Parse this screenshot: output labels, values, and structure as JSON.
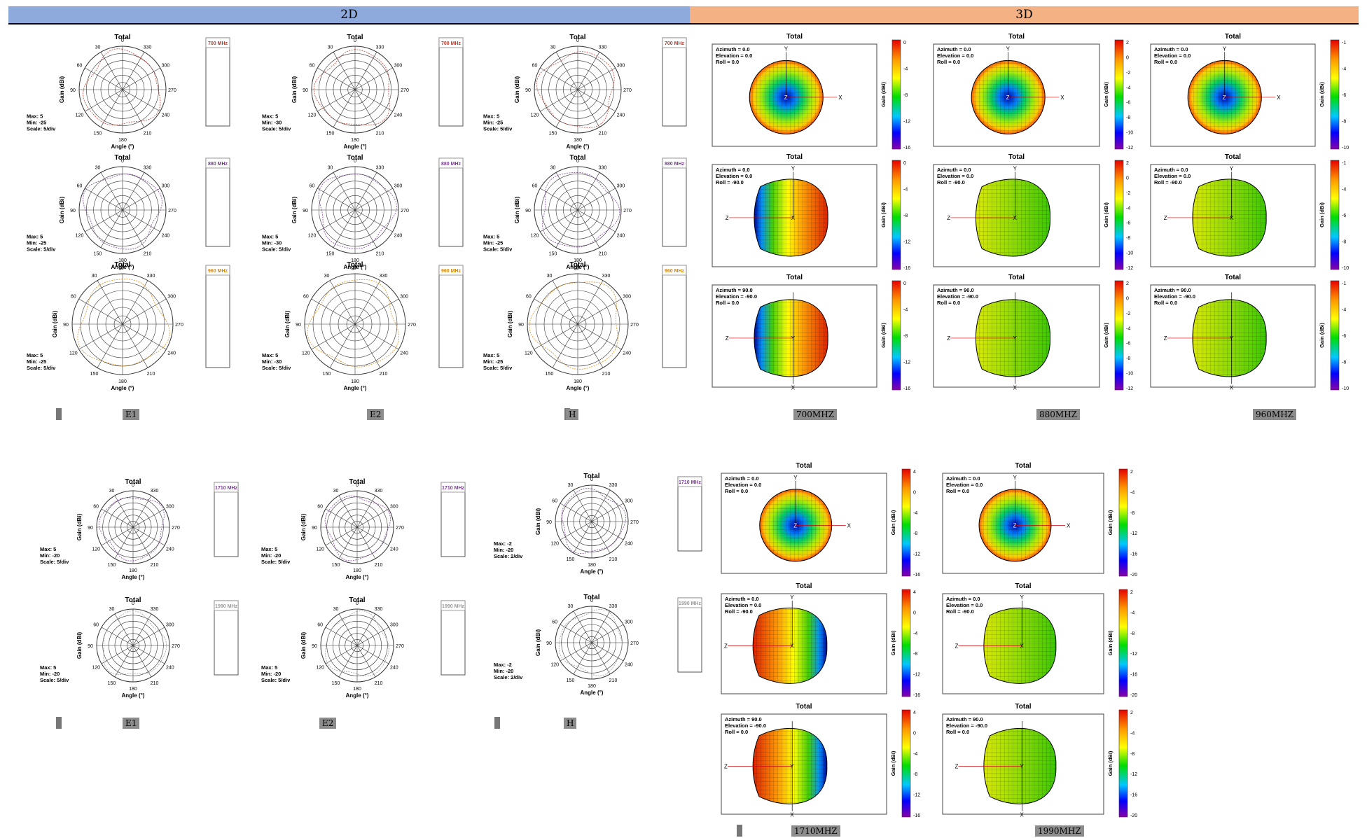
{
  "sections": {
    "twod": "2D",
    "threed": "3D"
  },
  "colors": {
    "header_2d": "#8ea9db",
    "header_3d": "#f4b183"
  },
  "polar_common": {
    "title": "Total",
    "angle_label": "Angle (°)",
    "gain_label": "Gain (dBi)",
    "angle_ticks": [
      "0",
      "30",
      "60",
      "90",
      "120",
      "150",
      "180",
      "210",
      "240",
      "270",
      "300",
      "330"
    ]
  },
  "band_labels": {
    "700": {
      "label": "700 MHz",
      "color": "#c0392b"
    },
    "880": {
      "label": "880 MHz",
      "color": "#7d3c98"
    },
    "960": {
      "label": "960 MHz",
      "color": "#d68910"
    },
    "1710": {
      "label": "1710 MHz",
      "color": "#7d3c98"
    },
    "1990": {
      "label": "1990 MHz",
      "color": "#999999"
    }
  },
  "polar_plots": [
    {
      "row": 0,
      "col": 0,
      "band": "700",
      "stats": [
        "Max: 5",
        "Min: -25",
        "Scale: 5/div"
      ]
    },
    {
      "row": 0,
      "col": 1,
      "band": "700",
      "stats": [
        "Max: 5",
        "Min: -30",
        "Scale: 5/div"
      ]
    },
    {
      "row": 0,
      "col": 2,
      "band": "700",
      "stats": [
        "Max: 5",
        "Min: -25",
        "Scale: 5/div"
      ]
    },
    {
      "row": 1,
      "col": 0,
      "band": "880",
      "stats": [
        "Max: 5",
        "Min: -25",
        "Scale: 5/div"
      ]
    },
    {
      "row": 1,
      "col": 1,
      "band": "880",
      "stats": [
        "Max: 5",
        "Min: -30",
        "Scale: 5/div"
      ]
    },
    {
      "row": 1,
      "col": 2,
      "band": "880",
      "stats": [
        "Max: 5",
        "Min: -25",
        "Scale: 5/div"
      ]
    },
    {
      "row": 2,
      "col": 0,
      "band": "960",
      "stats": [
        "Max: 5",
        "Min: -25",
        "Scale: 5/div"
      ]
    },
    {
      "row": 2,
      "col": 1,
      "band": "960",
      "stats": [
        "Max: 5",
        "Min: -30",
        "Scale: 5/div"
      ]
    },
    {
      "row": 2,
      "col": 2,
      "band": "960",
      "stats": [
        "Max: 5",
        "Min: -25",
        "Scale: 5/div"
      ]
    },
    {
      "row": 3,
      "col": 0,
      "band": "1710",
      "stats": [
        "Max: 5",
        "Min: -20",
        "Scale: 5/div"
      ]
    },
    {
      "row": 3,
      "col": 1,
      "band": "1710",
      "stats": [
        "Max: 5",
        "Min: -20",
        "Scale: 5/div"
      ]
    },
    {
      "row": 3,
      "col": 2,
      "band": "1710",
      "stats": [
        "Max: -2",
        "Min: -20",
        "Scale: 2/div"
      ]
    },
    {
      "row": 4,
      "col": 0,
      "band": "1990",
      "stats": [
        "Max: 5",
        "Min: -20",
        "Scale: 5/div"
      ]
    },
    {
      "row": 4,
      "col": 1,
      "band": "1990",
      "stats": [
        "Max: 5",
        "Min: -20",
        "Scale: 5/div"
      ]
    },
    {
      "row": 4,
      "col": 2,
      "band": "1990",
      "stats": [
        "Max: -2",
        "Min: -20",
        "Scale: 2/div"
      ]
    }
  ],
  "plots_3d": [
    {
      "col": 0,
      "row": 0,
      "view": "front",
      "info": [
        "Azimuth = 0.0",
        "Elevation = 0.0",
        "Roll = 0.0"
      ],
      "scale": [
        "0",
        "-4",
        "-8",
        "-12",
        "-16"
      ]
    },
    {
      "col": 0,
      "row": 1,
      "view": "side",
      "info": [
        "Azimuth = 0.0",
        "Elevation = 0.0",
        "Roll = -90.0"
      ],
      "scale": [
        "0",
        "-4",
        "-8",
        "-12",
        "-16"
      ]
    },
    {
      "col": 0,
      "row": 2,
      "view": "top",
      "info": [
        "Azimuth = 90.0",
        "Elevation = -90.0",
        "Roll = 0.0"
      ],
      "scale": [
        "0",
        "-4",
        "-8",
        "-12",
        "-16"
      ]
    },
    {
      "col": 1,
      "row": 0,
      "view": "front",
      "info": [
        "Azimuth = 0.0",
        "Elevation = 0.0",
        "Roll = 0.0"
      ],
      "scale": [
        "2",
        "0",
        "-2",
        "-4",
        "-6",
        "-8",
        "-10",
        "-12"
      ]
    },
    {
      "col": 1,
      "row": 1,
      "view": "side",
      "info": [
        "Azimuth = 0.0",
        "Elevation = 0.0",
        "Roll = -90.0"
      ],
      "scale": [
        "2",
        "0",
        "-2",
        "-4",
        "-6",
        "-8",
        "-10",
        "-12"
      ]
    },
    {
      "col": 1,
      "row": 2,
      "view": "top",
      "info": [
        "Azimuth = 90.0",
        "Elevation = -90.0",
        "Roll = 0.0"
      ],
      "scale": [
        "2",
        "0",
        "-2",
        "-4",
        "-6",
        "-8",
        "-10",
        "-12"
      ]
    },
    {
      "col": 2,
      "row": 0,
      "view": "front",
      "info": [
        "Azimuth = 0.0",
        "Elevation = 0.0",
        "Roll = 0.0"
      ],
      "scale": [
        "-1",
        "-4",
        "-6",
        "-8",
        "-10"
      ]
    },
    {
      "col": 2,
      "row": 1,
      "view": "side",
      "info": [
        "Azimuth = 0.0",
        "Elevation = 0.0",
        "Roll = -90.0"
      ],
      "scale": [
        "-1",
        "-4",
        "-6",
        "-8",
        "-10"
      ]
    },
    {
      "col": 2,
      "row": 2,
      "view": "top",
      "info": [
        "Azimuth = 90.0",
        "Elevation = -90.0",
        "Roll = 0.0"
      ],
      "scale": [
        "-1",
        "-4",
        "-6",
        "-8",
        "-10"
      ]
    },
    {
      "col": 3,
      "row": 0,
      "view": "front",
      "info": [
        "Azimuth = 0.0",
        "Elevation = 0.0",
        "Roll = 0.0"
      ],
      "scale": [
        "4",
        "0",
        "-4",
        "-8",
        "-12",
        "-16"
      ]
    },
    {
      "col": 3,
      "row": 1,
      "view": "side",
      "info": [
        "Azimuth = 0.0",
        "Elevation = 0.0",
        "Roll = -90.0"
      ],
      "scale": [
        "4",
        "0",
        "-4",
        "-8",
        "-12",
        "-16"
      ]
    },
    {
      "col": 3,
      "row": 2,
      "view": "top",
      "info": [
        "Azimuth = 90.0",
        "Elevation = -90.0",
        "Roll = 0.0"
      ],
      "scale": [
        "4",
        "0",
        "-4",
        "-8",
        "-12",
        "-16"
      ]
    },
    {
      "col": 4,
      "row": 0,
      "view": "front",
      "info": [
        "Azimuth = 0.0",
        "Elevation = 0.0",
        "Roll = 0.0"
      ],
      "scale": [
        "2",
        "-4",
        "-8",
        "-12",
        "-16",
        "-20"
      ]
    },
    {
      "col": 4,
      "row": 1,
      "view": "side",
      "info": [
        "Azimuth = 0.0",
        "Elevation = 0.0",
        "Roll = -90.0"
      ],
      "scale": [
        "2",
        "-4",
        "-8",
        "-12",
        "-16",
        "-20"
      ]
    },
    {
      "col": 4,
      "row": 2,
      "view": "top",
      "info": [
        "Azimuth = 90.0",
        "Elevation = -90.0",
        "Roll = 0.0"
      ],
      "scale": [
        "2",
        "-4",
        "-8",
        "-12",
        "-16",
        "-20"
      ]
    }
  ],
  "axes_letters": {
    "x": "X",
    "y": "Y",
    "z": "Z"
  },
  "captions": {
    "top_e1": "E1",
    "top_e2": "E2",
    "top_h": "H",
    "c700": "700MHZ",
    "c880": "880MHZ",
    "c960": "960MHZ",
    "bot_e1": "E1",
    "bot_e2": "E2",
    "bot_h": "H",
    "c1710": "1710MHZ",
    "c1990": "1990MHZ"
  },
  "chart_data": {
    "type": "polar",
    "title": "Total",
    "xlabel": "Angle (°)",
    "ylabel": "Gain (dBi)",
    "angle_ticks": [
      "0",
      "30",
      "60",
      "90",
      "120",
      "150",
      "180",
      "210",
      "240",
      "270",
      "300",
      "330"
    ],
    "series": [
      {
        "name": "700 MHz"
      },
      {
        "name": "880 MHz"
      },
      {
        "name": "960 MHz"
      },
      {
        "name": "1710 MHz"
      },
      {
        "name": "1990 MHz"
      }
    ]
  }
}
